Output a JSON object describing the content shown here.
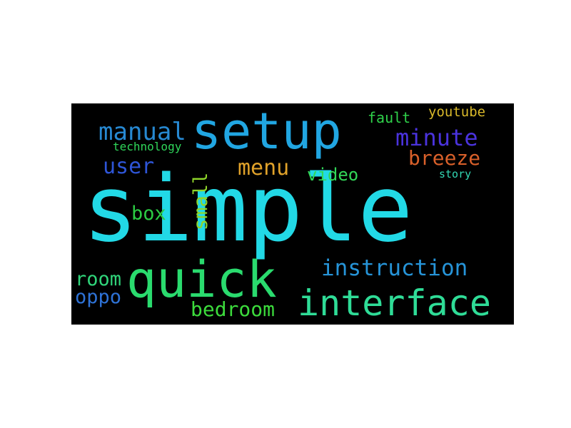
{
  "words": [
    {
      "text": "simple",
      "color": "#22d9e6"
    },
    {
      "text": "setup",
      "color": "#21a6e2"
    },
    {
      "text": "quick",
      "color": "#2adb6e"
    },
    {
      "text": "interface",
      "color": "#2fdc97"
    },
    {
      "text": "instruction",
      "color": "#2694d8"
    },
    {
      "text": "manual",
      "color": "#2789d2"
    },
    {
      "text": "minute",
      "color": "#4a33dd"
    },
    {
      "text": "breeze",
      "color": "#d9602a"
    },
    {
      "text": "menu",
      "color": "#e0a22a"
    },
    {
      "text": "user",
      "color": "#2e55d7"
    },
    {
      "text": "video",
      "color": "#32d858"
    },
    {
      "text": "bedroom",
      "color": "#3cdb3c"
    },
    {
      "text": "room",
      "color": "#30d47a"
    },
    {
      "text": "oppo",
      "color": "#2e72d6"
    },
    {
      "text": "box",
      "color": "#2bcc43"
    },
    {
      "text": "fault",
      "color": "#2fd14a"
    },
    {
      "text": "youtube",
      "color": "#d9b92a"
    },
    {
      "text": "technology",
      "color": "#2fd65a"
    },
    {
      "text": "story",
      "color": "#33d9b5"
    },
    {
      "text": "small",
      "color": "#8fd62a"
    }
  ]
}
